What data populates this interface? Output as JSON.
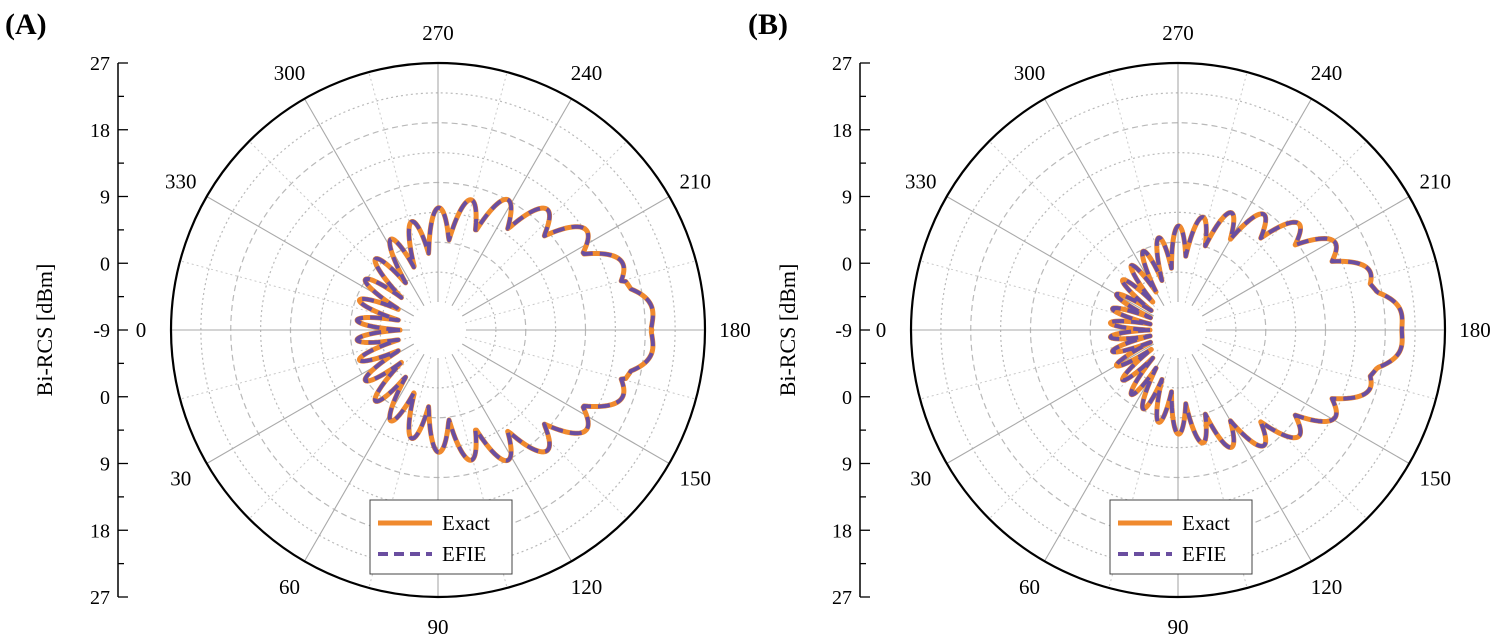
{
  "chart_data": [
    {
      "type": "polar-line",
      "panel_label": "(A)",
      "ylabel": "Bi-RCS [dBm]",
      "radial_ticks_top": [
        "27",
        "18",
        "9",
        "0",
        "-9"
      ],
      "radial_ticks_bottom": [
        "0",
        "9",
        "18",
        "27"
      ],
      "radial_range": [
        -9,
        27
      ],
      "angle_ticks": [
        "0",
        "30",
        "60",
        "90",
        "120",
        "150",
        "180",
        "210",
        "240",
        "270",
        "300",
        "330"
      ],
      "angle_direction": "clockwise, 0 at left, 90 at bottom",
      "legend": [
        "Exact",
        "EFIE"
      ],
      "legend_position": "bottom-center",
      "series_description": {
        "main_lobe_deg": 180,
        "main_lobe_dbm": 20.5,
        "lobe_peaks_dbm": [
          8,
          8,
          8,
          10,
          12,
          13,
          15,
          17.5,
          13,
          14,
          15,
          19,
          20.5
        ]
      }
    },
    {
      "type": "polar-line",
      "panel_label": "(B)",
      "ylabel": "Bi-RCS [dBm]",
      "radial_ticks_top": [
        "27",
        "18",
        "9",
        "0",
        "-9"
      ],
      "radial_ticks_bottom": [
        "0",
        "9",
        "18",
        "27"
      ],
      "radial_range": [
        -9,
        27
      ],
      "angle_ticks": [
        "0",
        "30",
        "60",
        "90",
        "120",
        "150",
        "180",
        "210",
        "240",
        "270",
        "300",
        "330"
      ],
      "angle_direction": "clockwise, 0 at left, 90 at bottom",
      "legend": [
        "Exact",
        "EFIE"
      ],
      "legend_position": "bottom-center",
      "series_description": {
        "main_lobe_deg": 180,
        "main_lobe_dbm": 22,
        "lobe_peaks_dbm": [
          5,
          5,
          6,
          7,
          8,
          9,
          10,
          11,
          12,
          13,
          14,
          15,
          22
        ]
      }
    }
  ],
  "colors": {
    "exact": "#f08a2e",
    "efie": "#6a4ea0",
    "grid": "#b9b9b9",
    "frame": "#000000"
  }
}
